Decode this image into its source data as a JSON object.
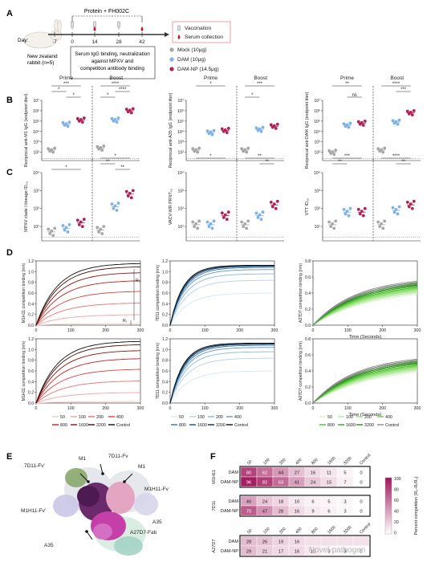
{
  "panels": {
    "A": "A",
    "B": "B",
    "C": "C",
    "D": "D",
    "E": "E",
    "F": "F"
  },
  "panel_a": {
    "protocol": "Protein + FH002C",
    "day_label": "Day:",
    "days": [
      "-7",
      "0",
      "14",
      "28",
      "42"
    ],
    "animal": "New zealand rabbit (n=5)",
    "legend": [
      {
        "label": "Vaccination",
        "icon": "syringe-icon"
      },
      {
        "label": "Serum collection",
        "icon": "blood-drop-icon"
      }
    ],
    "assay_box": "Serum IgG binding, neutralization against MPXV and competition antibody binding",
    "groups": [
      {
        "label": "Mock (10μg)",
        "color": "#a6a6a6"
      },
      {
        "label": "DAM (10μg)",
        "color": "#7fb1e8"
      },
      {
        "label": "DAM-NP (14.5μg)",
        "color": "#b22058"
      }
    ]
  },
  "panel_b": {
    "phase_labels": [
      "Prime",
      "Boost"
    ],
    "subplots": [
      {
        "ylabel": "Reciprocal anti-M1 IgG (endpoint titer)",
        "ticks": [
          "10⁷",
          "10⁶",
          "10⁵",
          "10⁴",
          "10³",
          "10²"
        ],
        "means": [
          2.6,
          5.1,
          5.5,
          2.8,
          5.5,
          6.4
        ],
        "sig": [
          {
            "label": "***",
            "a": 0,
            "b": 2,
            "lvl": 3
          },
          {
            "label": "*",
            "a": 0,
            "b": 1,
            "lvl": 2
          },
          {
            "label": "*",
            "a": 1,
            "b": 2,
            "lvl": 1
          },
          {
            "label": "****",
            "a": 3,
            "b": 5,
            "lvl": 3
          },
          {
            "label": "****",
            "a": 4,
            "b": 5,
            "lvl": 2
          },
          {
            "label": "*",
            "a": 3,
            "b": 4,
            "lvl": 1
          }
        ]
      },
      {
        "ylabel": "Reciprocal anti-A35 IgG (endpoint titer)",
        "ticks": [
          "10⁷",
          "10⁶",
          "10⁵",
          "10⁴",
          "10³",
          "10²"
        ],
        "means": [
          2.6,
          4.3,
          4.5,
          2.6,
          4.6,
          4.9
        ],
        "sig": [
          {
            "label": "*",
            "a": 0,
            "b": 2,
            "lvl": 3
          },
          {
            "label": "***",
            "a": 3,
            "b": 5,
            "lvl": 3
          },
          {
            "label": "*",
            "a": 3,
            "b": 4,
            "lvl": 1
          }
        ]
      },
      {
        "ylabel": "Reciprocal anti-DAM IgG (endpoint titer)",
        "ticks": [
          "10⁷",
          "10⁶",
          "10⁵",
          "10⁴",
          "10³",
          "10²"
        ],
        "means": [
          2.4,
          5.0,
          5.2,
          2.6,
          5.3,
          6.2
        ],
        "sig": [
          {
            "label": "**",
            "a": 0,
            "b": 2,
            "lvl": 3
          },
          {
            "label": "ns",
            "a": 1,
            "b": 2,
            "lvl": 1
          },
          {
            "label": "****",
            "a": 3,
            "b": 5,
            "lvl": 3
          },
          {
            "label": "***",
            "a": 4,
            "b": 5,
            "lvl": 2
          }
        ]
      }
    ]
  },
  "panel_c": {
    "subplots": [
      {
        "ylabel": "MPXV clade I lineage ID₅₀",
        "ticks": [
          "10⁴",
          "10³",
          "10²",
          "10¹"
        ],
        "means": [
          1.1,
          1.3,
          1.6,
          1.2,
          2.5,
          3.2
        ],
        "sig": [
          {
            "label": "*",
            "a": 0,
            "b": 2,
            "lvl": 1
          },
          {
            "label": "*",
            "a": 3,
            "b": 5,
            "lvl": 3
          },
          {
            "label": "**",
            "a": 3,
            "b": 4,
            "lvl": 2
          },
          {
            "label": "**",
            "a": 4,
            "b": 5,
            "lvl": 1
          }
        ]
      },
      {
        "ylabel": "VACV-WR PRNT₅₀",
        "ticks": [
          "10⁴",
          "10³",
          "10²",
          "10¹"
        ],
        "means": [
          1.5,
          1.5,
          2.0,
          1.5,
          2.0,
          2.6
        ],
        "sig": [
          {
            "label": "*",
            "a": 0,
            "b": 2,
            "lvl": 3
          },
          {
            "label": "**",
            "a": 3,
            "b": 5,
            "lvl": 3
          },
          {
            "label": "**",
            "a": 4,
            "b": 5,
            "lvl": 2
          }
        ]
      },
      {
        "ylabel": "VTT ID₅₀",
        "ticks": [
          "10⁴",
          "10³",
          "10²",
          "10¹"
        ],
        "means": [
          1.5,
          2.2,
          2.2,
          1.5,
          2.3,
          2.6
        ],
        "sig": [
          {
            "label": "***",
            "a": 0,
            "b": 2,
            "lvl": 3
          },
          {
            "label": "**",
            "a": 0,
            "b": 1,
            "lvl": 2
          },
          {
            "label": "****",
            "a": 3,
            "b": 5,
            "lvl": 3
          },
          {
            "label": "**",
            "a": 4,
            "b": 5,
            "lvl": 2
          }
        ]
      }
    ]
  },
  "panel_d": {
    "xticks": [
      "0",
      "100",
      "200",
      "300"
    ],
    "xlabel": "Time (Seconds)",
    "rows": [
      [
        {
          "ylabel": "M1H11 competition binding (nm)",
          "yticks": [
            "1.2",
            "1.0",
            "0.8",
            "0.6",
            "0.4",
            "0.2",
            "0.0"
          ],
          "palette": "red",
          "ymax": 1.2
        },
        {
          "ylabel": "7D11 competition binding (nm)",
          "yticks": [
            "1.2",
            "1.0",
            "0.8",
            "0.6",
            "0.4",
            "0.2",
            "0.0"
          ],
          "palette": "blue",
          "ymax": 1.2
        },
        {
          "ylabel": "A27D7 competition binding (nm)",
          "yticks": [
            "0.8",
            "0.6",
            "0.4",
            "0.2",
            "0.0"
          ],
          "palette": "green",
          "ymax": 0.8
        }
      ],
      [
        {
          "ylabel": "M1H11 competition binding (nm)",
          "yticks": [
            "1.2",
            "1.0",
            "0.8",
            "0.6",
            "0.4",
            "0.2",
            "0.0"
          ],
          "palette": "red",
          "ymax": 1.2
        },
        {
          "ylabel": "7D11 competition binding (nm)",
          "yticks": [
            "1.2",
            "1.0",
            "0.8",
            "0.6",
            "0.4",
            "0.2",
            "0.0"
          ],
          "palette": "blue",
          "ymax": 1.2
        },
        {
          "ylabel": "A27D7 competition binding (nm)",
          "yticks": [
            "0.8",
            "0.6",
            "0.4",
            "0.2",
            "0.0"
          ],
          "palette": "green",
          "ymax": 0.8
        }
      ]
    ],
    "r0": "R₀",
    "ri": "Rᵢ",
    "legend_labels": [
      "50",
      "100",
      "200",
      "400",
      "800",
      "1600",
      "3200",
      "Control"
    ]
  },
  "panel_e": {
    "labels": [
      "7D11-Fv'",
      "M1",
      "7D11-Fv",
      "M1",
      "M1H11-Fv'",
      "M1H11-Fv",
      "A35",
      "A35",
      "A27D7-Fab"
    ]
  },
  "panel_f": {
    "col_labels": [
      "50",
      "100",
      "200",
      "400",
      "800",
      "1600",
      "3200",
      "Control"
    ],
    "blocks": [
      {
        "name": "M1H11",
        "rows": [
          {
            "label": "DAM",
            "values": [
              "80",
              "62",
              "44",
              "27",
              "16",
              "11",
              "5",
              "0"
            ]
          },
          {
            "label": "DAM-NP",
            "values": [
              "96",
              "82",
              "63",
              "41",
              "24",
              "15",
              "7",
              "0"
            ]
          }
        ]
      },
      {
        "name": "7D11",
        "rows": [
          {
            "label": "DAM",
            "values": [
              "40",
              "24",
              "18",
              "10",
              "6",
              "5",
              "3",
              "0"
            ]
          },
          {
            "label": "DAM-NP",
            "values": [
              "70",
              "47",
              "28",
              "16",
              "9",
              "6",
              "3",
              "0"
            ]
          }
        ]
      },
      {
        "name": "A27D7",
        "rows": [
          {
            "label": "DAM",
            "values": [
              "28",
              "26",
              "19",
              "16",
              "",
              "",
              "",
              ""
            ]
          },
          {
            "label": "DAM-NP",
            "values": [
              "29",
              "21",
              "17",
              "16",
              "10",
              "5",
              "3",
              "0"
            ]
          }
        ]
      }
    ],
    "colorbar_label": "Percent competition (R₀-Rᵢ/R₀)",
    "colorbar_ticks": [
      "100",
      "80",
      "60",
      "40",
      "20",
      "0"
    ],
    "watermark": "Novel-pathogen"
  },
  "colors": {
    "mock": "#a6a6a6",
    "dam": "#7fb1e8",
    "damnp": "#b22058",
    "heat": "#a0155a"
  }
}
